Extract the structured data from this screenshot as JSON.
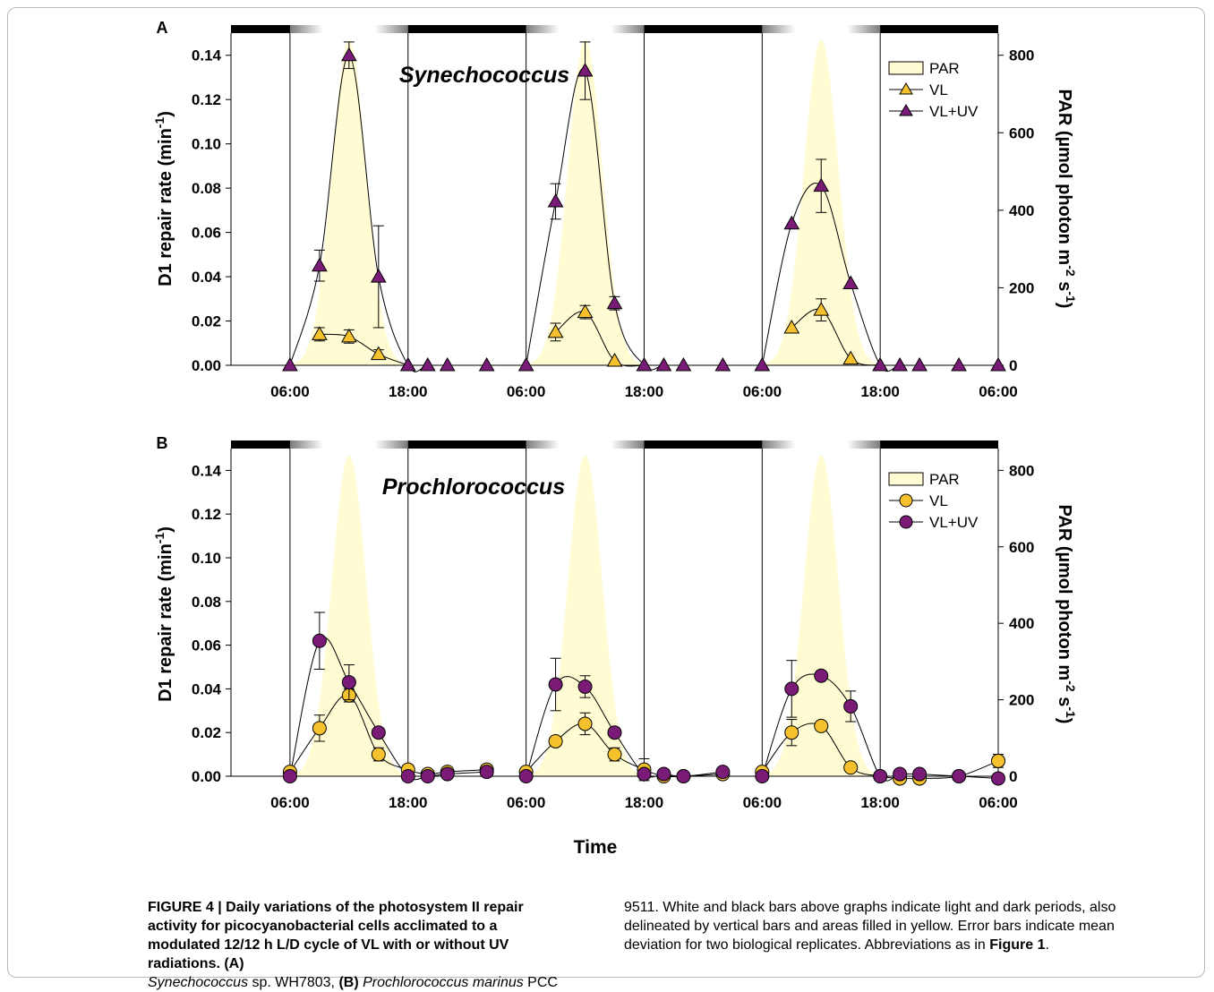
{
  "colors": {
    "par_fill": "#fffbd2",
    "vl_fill": "#f5c12c",
    "vlu_fill": "#7b1b78",
    "dark_bar": "#000000",
    "light_bar": "#ffffff",
    "frame": "#b9b9b9"
  },
  "x_title": "Time",
  "caption": {
    "label": "FIGURE 4 | ",
    "bold_text": "Daily variations of the photosystem II repair activity for picocyanobacterial cells acclimated to a modulated 12/12 h L/D cycle of VL with or without UV radiations. (A)",
    "italic_a": "Synechococcus",
    "text_a": " sp. WH7803, ",
    "b_marker": "(B)",
    "italic_b": "Prochlorococcus marinus",
    "text_b": " PCC",
    "right_text": "9511. White and black bars above graphs indicate light and dark periods, also delineated by vertical bars and areas filled in yellow. Error bars indicate mean deviation for two biological replicates. Abbreviations as in ",
    "ref": "Figure 1",
    "end": "."
  },
  "chart_data": [
    {
      "panel": "A",
      "type": "line",
      "title": "Synechococcus",
      "ylabel": "D1 repair rate (min-1)",
      "y2label": "PAR (µmol photon m-2 s-1)",
      "ylim": [
        0,
        0.15
      ],
      "y2lim": [
        0,
        857
      ],
      "yticks": [
        "0.00",
        "0.02",
        "0.04",
        "0.06",
        "0.08",
        "0.10",
        "0.12",
        "0.14"
      ],
      "y2ticks": [
        "0",
        "200",
        "400",
        "600",
        "800"
      ],
      "xlim": [
        0,
        78
      ],
      "xticks": [
        {
          "x": 6,
          "label": "06:00"
        },
        {
          "x": 18,
          "label": "18:00"
        },
        {
          "x": 30,
          "label": "06:00"
        },
        {
          "x": 42,
          "label": "18:00"
        },
        {
          "x": 54,
          "label": "06:00"
        },
        {
          "x": 66,
          "label": "18:00"
        },
        {
          "x": 78,
          "label": "06:00"
        }
      ],
      "light_periods": [
        [
          6,
          18
        ],
        [
          30,
          42
        ],
        [
          54,
          66
        ]
      ],
      "par_peak": 840,
      "legend": [
        "PAR",
        "VL",
        "VL+UV"
      ],
      "legend_position": "top-right",
      "marker": "triangle",
      "series": [
        {
          "name": "VL",
          "x": [
            9,
            12,
            15,
            18
          ],
          "y": [
            0.014,
            0.013,
            0.005,
            0.0
          ],
          "err": [
            0.003,
            0.003,
            0.002,
            0
          ]
        },
        {
          "name": "VL+UV",
          "x": [
            6,
            9,
            12,
            15,
            18,
            20,
            22,
            26
          ],
          "y": [
            0.0,
            0.045,
            0.14,
            0.04,
            0.0,
            0.0,
            0.0,
            0.0
          ],
          "err": [
            0,
            0.007,
            0.006,
            0.023,
            0,
            0,
            0,
            0
          ]
        },
        {
          "name": "VL",
          "x": [
            33,
            36,
            39,
            42
          ],
          "y": [
            0.015,
            0.024,
            0.002,
            0.0
          ],
          "err": [
            0.004,
            0.003,
            0,
            0
          ]
        },
        {
          "name": "VL+UV",
          "x": [
            30,
            33,
            36,
            39,
            42,
            44,
            46,
            50
          ],
          "y": [
            0.0,
            0.074,
            0.133,
            0.028,
            0.0,
            0.0,
            0.0,
            0.0
          ],
          "err": [
            0,
            0.008,
            0.013,
            0.003,
            0,
            0,
            0,
            0
          ]
        },
        {
          "name": "VL",
          "x": [
            57,
            60,
            63,
            66
          ],
          "y": [
            0.017,
            0.025,
            0.003,
            0.0
          ],
          "err": [
            0,
            0.005,
            0,
            0
          ]
        },
        {
          "name": "VL+UV",
          "x": [
            54,
            57,
            60,
            63,
            66,
            68,
            70,
            74,
            78
          ],
          "y": [
            0.0,
            0.064,
            0.081,
            0.037,
            0.0,
            0.0,
            0.0,
            0.0,
            0.0
          ],
          "err": [
            0,
            0,
            0.012,
            0,
            0,
            0,
            0,
            0,
            0
          ]
        }
      ]
    },
    {
      "panel": "B",
      "type": "line",
      "title": "Prochlorococcus",
      "ylabel": "D1 repair rate (min-1)",
      "y2label": "PAR (µmol photon m-2 s-1)",
      "ylim": [
        0,
        0.15
      ],
      "y2lim": [
        0,
        857
      ],
      "yticks": [
        "0.00",
        "0.02",
        "0.04",
        "0.06",
        "0.08",
        "0.10",
        "0.12",
        "0.14"
      ],
      "y2ticks": [
        "0",
        "200",
        "400",
        "600",
        "800"
      ],
      "xlim": [
        0,
        78
      ],
      "xticks": [
        {
          "x": 6,
          "label": "06:00"
        },
        {
          "x": 18,
          "label": "18:00"
        },
        {
          "x": 30,
          "label": "06:00"
        },
        {
          "x": 42,
          "label": "18:00"
        },
        {
          "x": 54,
          "label": "06:00"
        },
        {
          "x": 66,
          "label": "18:00"
        },
        {
          "x": 78,
          "label": "06:00"
        }
      ],
      "light_periods": [
        [
          6,
          18
        ],
        [
          30,
          42
        ],
        [
          54,
          66
        ]
      ],
      "par_peak": 840,
      "legend": [
        "PAR",
        "VL",
        "VL+UV"
      ],
      "legend_position": "top-right",
      "marker": "circle",
      "series": [
        {
          "name": "VL",
          "x": [
            6,
            9,
            12,
            15,
            18,
            20,
            22,
            26
          ],
          "y": [
            0.002,
            0.022,
            0.037,
            0.01,
            0.003,
            0.001,
            0.002,
            0.003
          ],
          "err": [
            0.002,
            0.006,
            0.003,
            0.003,
            0.002,
            0,
            0.002,
            0.002
          ]
        },
        {
          "name": "VL+UV",
          "x": [
            6,
            9,
            12,
            15,
            18,
            20,
            22,
            26
          ],
          "y": [
            0.0,
            0.062,
            0.043,
            0.02,
            0.0,
            0.0,
            0.001,
            0.002
          ],
          "err": [
            0,
            0.013,
            0.008,
            0,
            0,
            0,
            0,
            0
          ]
        },
        {
          "name": "VL",
          "x": [
            30,
            33,
            36,
            39,
            42,
            44,
            46,
            50
          ],
          "y": [
            0.002,
            0.016,
            0.024,
            0.01,
            0.003,
            0.0,
            0.0,
            0.001
          ],
          "err": [
            0.002,
            0,
            0.005,
            0.003,
            0.005,
            0,
            0,
            0
          ]
        },
        {
          "name": "VL+UV",
          "x": [
            30,
            33,
            36,
            39,
            42,
            44,
            46,
            50
          ],
          "y": [
            0.0,
            0.042,
            0.041,
            0.02,
            0.001,
            0.001,
            0.0,
            0.002
          ],
          "err": [
            0,
            0.012,
            0.005,
            0,
            0,
            0,
            0,
            0
          ]
        },
        {
          "name": "VL",
          "x": [
            54,
            57,
            60,
            63,
            66,
            68,
            70,
            74,
            78
          ],
          "y": [
            0.002,
            0.02,
            0.023,
            0.004,
            0.0,
            -0.001,
            -0.001,
            0.0,
            0.007
          ],
          "err": [
            0,
            0.006,
            0,
            0,
            0,
            0,
            0,
            0,
            0.003
          ]
        },
        {
          "name": "VL+UV",
          "x": [
            54,
            57,
            60,
            63,
            66,
            68,
            70,
            74,
            78
          ],
          "y": [
            0.0,
            0.04,
            0.046,
            0.032,
            0.0,
            0.001,
            0.001,
            0.0,
            -0.001
          ],
          "err": [
            0,
            0.013,
            0,
            0.007,
            0,
            0,
            0,
            0,
            0
          ]
        }
      ]
    }
  ]
}
